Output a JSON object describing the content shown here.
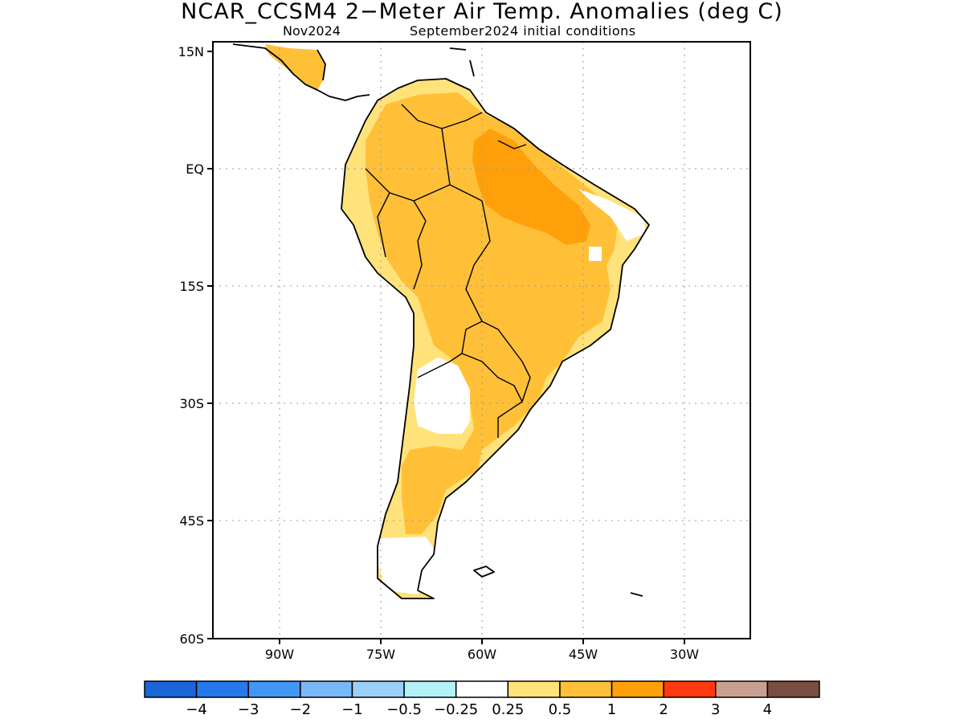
{
  "title": "NCAR_CCSM4 2−Meter Air Temp. Anomalies (deg C)",
  "subtitle_left": "Nov2024",
  "subtitle_right": "September2024 initial conditions",
  "lat_labels": [
    "15N",
    "EQ",
    "15S",
    "30S",
    "45S",
    "60S"
  ],
  "lon_labels": [
    "90W",
    "75W",
    "60W",
    "45W",
    "30W"
  ],
  "colorbar": {
    "colors": [
      "#1a66d9",
      "#2678ee",
      "#4296f5",
      "#78b8f7",
      "#9ad0f8",
      "#b4f0f8",
      "#ffffff",
      "#ffe27a",
      "#ffc038",
      "#ffa00a",
      "#ff3a10",
      "#c8a090",
      "#7a4e40"
    ],
    "labels": [
      "−4",
      "−3",
      "−2",
      "−1",
      "−0.5",
      "−0.25",
      "0.25",
      "0.5",
      "1",
      "2",
      "3",
      "4"
    ]
  },
  "map_colors": {
    "pale": "#ffe27a",
    "light": "#ffc038",
    "orange": "#ffa00a",
    "cool": "#b4f0f8",
    "coast": "#000000",
    "grid": "#999999"
  }
}
